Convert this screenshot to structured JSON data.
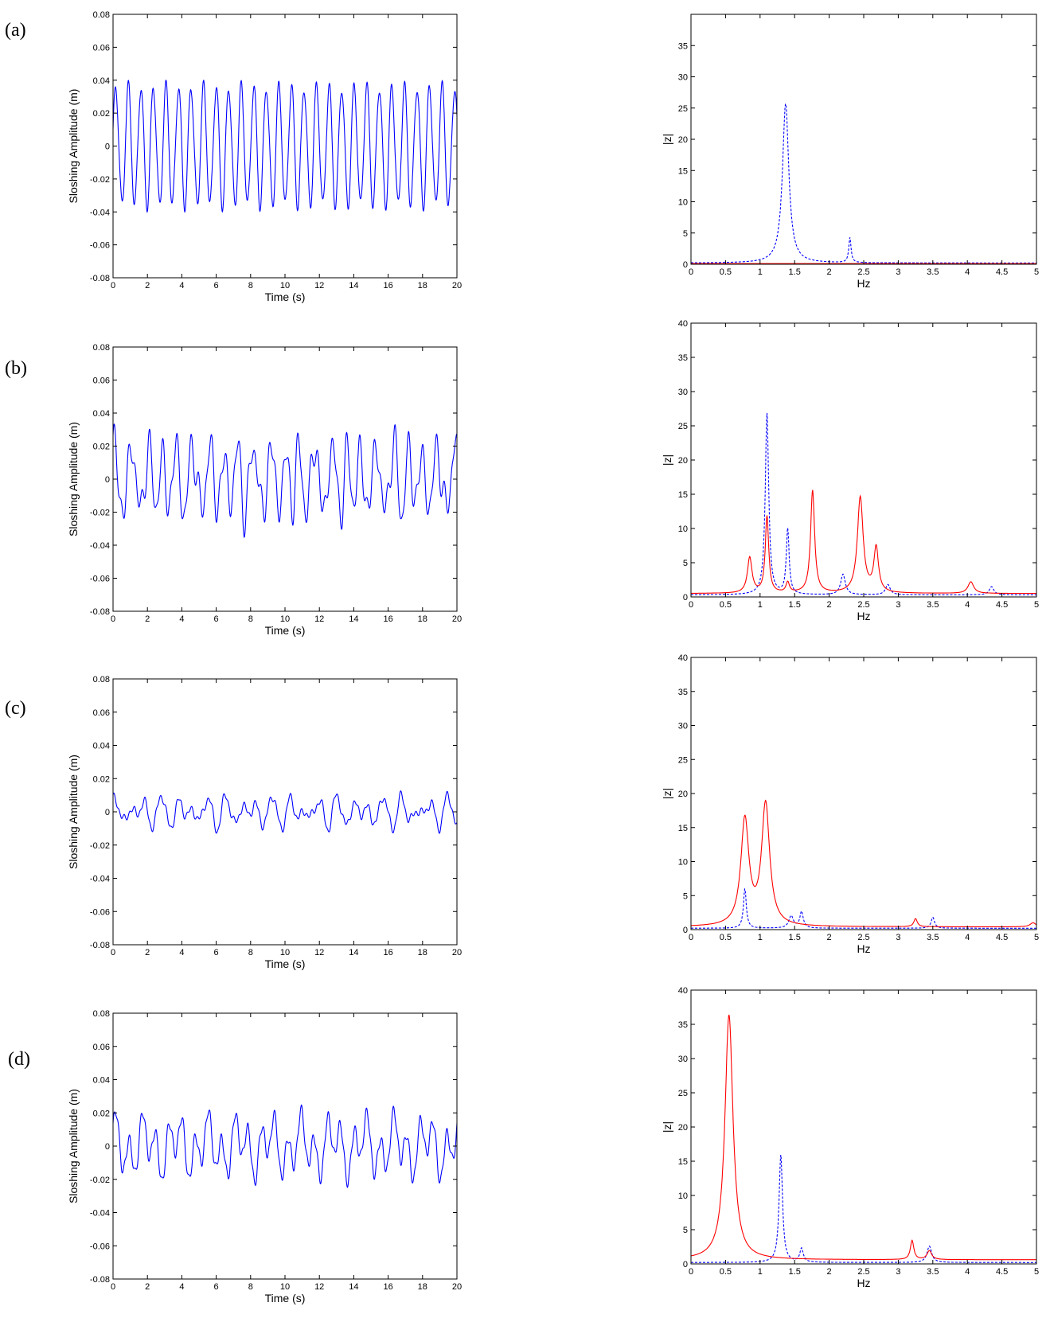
{
  "panel_labels": [
    "(a)",
    "(b)",
    "(c)",
    "(d)"
  ],
  "colors": {
    "time_series": "#0000ff",
    "spectrum_solid": "#ff0000",
    "spectrum_dashed": "#0000ff",
    "axis": "#000000"
  },
  "chart_data": [
    {
      "type": "line",
      "panel": "(a)",
      "kind": "time",
      "xlabel": "Time (s)",
      "ylabel": "Sloshing Amplitude (m)",
      "xlim": [
        0,
        20
      ],
      "ylim": [
        -0.08,
        0.08
      ],
      "xticks": [
        "0",
        "2",
        "4",
        "6",
        "8",
        "10",
        "12",
        "14",
        "16",
        "18",
        "20"
      ],
      "yticks": [
        "-0.08",
        "-0.06",
        "-0.04",
        "-0.02",
        "0",
        "0.02",
        "0.04",
        "0.06",
        "0.08"
      ],
      "series": [
        {
          "style": "solid",
          "color": "#0000ff",
          "model": {
            "components": [
              {
                "amp": 0.036,
                "freq": 1.37,
                "phase": 0.2
              },
              {
                "amp": 0.004,
                "freq": 2.3,
                "phase": 1.0
              }
            ],
            "start": 0.01
          }
        }
      ]
    },
    {
      "type": "line",
      "panel": "(a)",
      "kind": "spectrum",
      "xlabel": "Hz",
      "ylabel": "|z|",
      "xlim": [
        0,
        5
      ],
      "ylim": [
        0,
        40
      ],
      "xticks": [
        "0",
        "0.5",
        "1",
        "1.5",
        "2",
        "2.5",
        "3",
        "3.5",
        "4",
        "4.5",
        "5"
      ],
      "yticks": [
        "0",
        "5",
        "10",
        "15",
        "20",
        "25",
        "30",
        "35"
      ],
      "series": [
        {
          "style": "dashed",
          "color": "#0000ff",
          "baseline": 0.2,
          "peaks": [
            {
              "x": 1.37,
              "y": 25.5,
              "w": 0.055
            },
            {
              "x": 2.3,
              "y": 4.0,
              "w": 0.02
            }
          ]
        },
        {
          "style": "solid",
          "color": "#ff0000",
          "baseline": 0.1,
          "peaks": []
        }
      ]
    },
    {
      "type": "line",
      "panel": "(b)",
      "kind": "time",
      "xlabel": "Time (s)",
      "ylabel": "Sloshing Amplitude (m)",
      "xlim": [
        0,
        20
      ],
      "ylim": [
        -0.08,
        0.08
      ],
      "xticks": [
        "0",
        "2",
        "4",
        "6",
        "8",
        "10",
        "12",
        "14",
        "16",
        "18",
        "20"
      ],
      "yticks": [
        "-0.08",
        "-0.06",
        "-0.04",
        "-0.02",
        "0",
        "0.02",
        "0.04",
        "0.06",
        "0.08"
      ],
      "series": [
        {
          "style": "solid",
          "color": "#0000ff",
          "model": {
            "components": [
              {
                "amp": 0.016,
                "freq": 1.12,
                "phase": 0.3
              },
              {
                "amp": 0.01,
                "freq": 1.4,
                "phase": 1.1
              },
              {
                "amp": 0.008,
                "freq": 0.85,
                "phase": 2.0
              },
              {
                "amp": 0.007,
                "freq": 2.45,
                "phase": 0.5
              },
              {
                "amp": 0.004,
                "freq": 1.75,
                "phase": 2.5
              }
            ],
            "start": 0.0
          }
        }
      ]
    },
    {
      "type": "line",
      "panel": "(b)",
      "kind": "spectrum",
      "xlabel": "Hz",
      "ylabel": "|z|",
      "xlim": [
        0,
        5
      ],
      "ylim": [
        0,
        40
      ],
      "xticks": [
        "0",
        "0.5",
        "1",
        "1.5",
        "2",
        "2.5",
        "3",
        "3.5",
        "4",
        "4.5",
        "5"
      ],
      "yticks": [
        "0",
        "5",
        "10",
        "15",
        "20",
        "25",
        "30",
        "35",
        "40"
      ],
      "series": [
        {
          "style": "dashed",
          "color": "#0000ff",
          "baseline": 0.3,
          "peaks": [
            {
              "x": 1.1,
              "y": 26.5,
              "w": 0.03
            },
            {
              "x": 1.4,
              "y": 9.5,
              "w": 0.025
            },
            {
              "x": 2.2,
              "y": 3.0,
              "w": 0.04
            },
            {
              "x": 2.85,
              "y": 1.5,
              "w": 0.04
            },
            {
              "x": 4.35,
              "y": 1.2,
              "w": 0.04
            }
          ]
        },
        {
          "style": "solid",
          "color": "#ff0000",
          "baseline": 0.5,
          "peaks": [
            {
              "x": 0.85,
              "y": 5.2,
              "w": 0.04
            },
            {
              "x": 1.1,
              "y": 11.2,
              "w": 0.03
            },
            {
              "x": 1.4,
              "y": 1.5,
              "w": 0.03
            },
            {
              "x": 1.76,
              "y": 15.0,
              "w": 0.035
            },
            {
              "x": 2.45,
              "y": 14.0,
              "w": 0.05
            },
            {
              "x": 2.68,
              "y": 6.5,
              "w": 0.04
            },
            {
              "x": 4.05,
              "y": 1.7,
              "w": 0.05
            }
          ]
        }
      ]
    },
    {
      "type": "line",
      "panel": "(c)",
      "kind": "time",
      "xlabel": "Time (s)",
      "ylabel": "Sloshing Amplitude (m)",
      "xlim": [
        0,
        20
      ],
      "ylim": [
        -0.08,
        0.08
      ],
      "xticks": [
        "0",
        "2",
        "4",
        "6",
        "8",
        "10",
        "12",
        "14",
        "16",
        "18",
        "20"
      ],
      "yticks": [
        "-0.08",
        "-0.06",
        "-0.04",
        "-0.02",
        "0",
        "0.02",
        "0.04",
        "0.06",
        "0.08"
      ],
      "series": [
        {
          "style": "solid",
          "color": "#0000ff",
          "model": {
            "components": [
              {
                "amp": 0.005,
                "freq": 0.78,
                "phase": 0.4
              },
              {
                "amp": 0.0055,
                "freq": 1.08,
                "phase": 1.3
              },
              {
                "amp": 0.0025,
                "freq": 1.55,
                "phase": 2.1
              },
              {
                "amp": 0.0015,
                "freq": 3.3,
                "phase": 0.6
              }
            ],
            "start": 0.0
          }
        }
      ]
    },
    {
      "type": "line",
      "panel": "(c)",
      "kind": "spectrum",
      "xlabel": "Hz",
      "ylabel": "|z|",
      "xlim": [
        0,
        5
      ],
      "ylim": [
        0,
        40
      ],
      "xticks": [
        "0",
        "0.5",
        "1",
        "1.5",
        "2",
        "2.5",
        "3",
        "3.5",
        "4",
        "4.5",
        "5"
      ],
      "yticks": [
        "0",
        "5",
        "10",
        "15",
        "20",
        "25",
        "30",
        "35",
        "40"
      ],
      "series": [
        {
          "style": "dashed",
          "color": "#0000ff",
          "baseline": 0.2,
          "peaks": [
            {
              "x": 0.78,
              "y": 5.8,
              "w": 0.025
            },
            {
              "x": 1.45,
              "y": 1.8,
              "w": 0.04
            },
            {
              "x": 1.6,
              "y": 2.4,
              "w": 0.03
            },
            {
              "x": 3.5,
              "y": 1.6,
              "w": 0.03
            }
          ]
        },
        {
          "style": "solid",
          "color": "#ff0000",
          "baseline": 0.4,
          "peaks": [
            {
              "x": 0.78,
              "y": 15.5,
              "w": 0.07
            },
            {
              "x": 1.08,
              "y": 17.8,
              "w": 0.07
            },
            {
              "x": 3.25,
              "y": 1.2,
              "w": 0.03
            },
            {
              "x": 4.95,
              "y": 0.6,
              "w": 0.05
            }
          ]
        }
      ]
    },
    {
      "type": "line",
      "panel": "(d)",
      "kind": "time",
      "xlabel": "Time (s)",
      "ylabel": "Sloshing Amplitude (m)",
      "xlim": [
        0,
        20
      ],
      "ylim": [
        -0.08,
        0.08
      ],
      "xticks": [
        "0",
        "2",
        "4",
        "6",
        "8",
        "10",
        "12",
        "14",
        "16",
        "18",
        "20"
      ],
      "yticks": [
        "-0.08",
        "-0.06",
        "-0.04",
        "-0.02",
        "0",
        "0.02",
        "0.04",
        "0.06",
        "0.08"
      ],
      "series": [
        {
          "style": "solid",
          "color": "#0000ff",
          "model": {
            "components": [
              {
                "amp": 0.013,
                "freq": 1.3,
                "phase": 0.2
              },
              {
                "amp": 0.009,
                "freq": 0.55,
                "phase": 1.4
              },
              {
                "amp": 0.003,
                "freq": 3.2,
                "phase": 0.9
              }
            ],
            "start": 0.0
          }
        }
      ]
    },
    {
      "type": "line",
      "panel": "(d)",
      "kind": "spectrum",
      "xlabel": "Hz",
      "ylabel": "|z|",
      "xlim": [
        0,
        5
      ],
      "ylim": [
        0,
        40
      ],
      "xticks": [
        "0",
        "0.5",
        "1",
        "1.5",
        "2",
        "2.5",
        "3",
        "3.5",
        "4",
        "4.5",
        "5"
      ],
      "yticks": [
        "0",
        "5",
        "10",
        "15",
        "20",
        "25",
        "30",
        "35",
        "40"
      ],
      "series": [
        {
          "style": "dashed",
          "color": "#0000ff",
          "baseline": 0.2,
          "peaks": [
            {
              "x": 1.3,
              "y": 15.7,
              "w": 0.03
            },
            {
              "x": 1.6,
              "y": 2.0,
              "w": 0.03
            },
            {
              "x": 3.45,
              "y": 2.4,
              "w": 0.04
            }
          ]
        },
        {
          "style": "solid",
          "color": "#ff0000",
          "baseline": 0.6,
          "peaks": [
            {
              "x": 0.55,
              "y": 35.8,
              "w": 0.07
            },
            {
              "x": 3.2,
              "y": 2.8,
              "w": 0.03
            },
            {
              "x": 3.45,
              "y": 1.3,
              "w": 0.04
            }
          ]
        }
      ]
    }
  ]
}
